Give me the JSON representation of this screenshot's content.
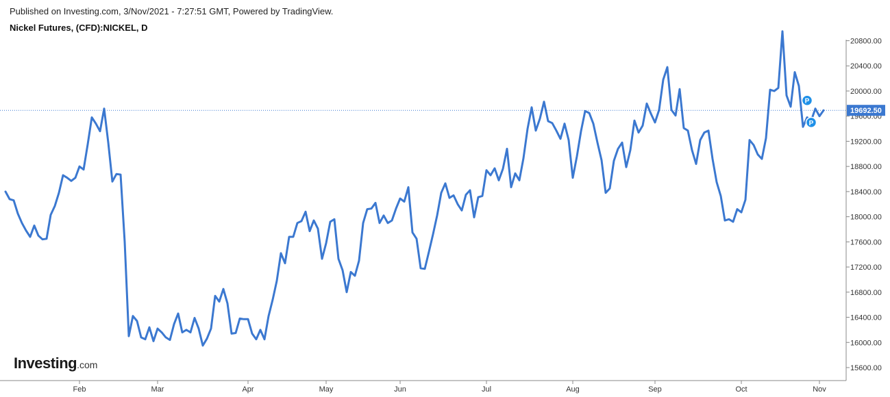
{
  "header": {
    "published": "Published on Investing.com, 3/Nov/2021 - 7:27:51 GMT, Powered by TradingView.",
    "title": "Nickel Futures, (CFD):NICKEL, D"
  },
  "logo": {
    "brand": "Investing",
    "tld": ".com"
  },
  "colors": {
    "line": "#3b78d0",
    "last_price_bg": "#3b78d0",
    "axis": "#777777",
    "marker": "#1e90e8"
  },
  "chart_data": {
    "type": "line",
    "title": "Nickel Futures, (CFD):NICKEL, D",
    "xlabel": "",
    "ylabel": "",
    "y_ticks": [
      "15600.00",
      "16000.00",
      "16400.00",
      "16800.00",
      "17200.00",
      "17600.00",
      "18000.00",
      "18400.00",
      "18800.00",
      "19200.00",
      "19600.00",
      "20000.00",
      "20400.00",
      "20800.00"
    ],
    "ylim": [
      15400,
      20990
    ],
    "x_ticks": [
      {
        "label": "Feb",
        "index": 18
      },
      {
        "label": "Mar",
        "index": 37
      },
      {
        "label": "Apr",
        "index": 59
      },
      {
        "label": "May",
        "index": 78
      },
      {
        "label": "Jun",
        "index": 96
      },
      {
        "label": "Jul",
        "index": 117
      },
      {
        "label": "Aug",
        "index": 138
      },
      {
        "label": "Sep",
        "index": 158
      },
      {
        "label": "Oct",
        "index": 179
      },
      {
        "label": "Nov",
        "index": 198
      }
    ],
    "last_price": "19692.50",
    "last_value": 19692.5,
    "markers": [
      {
        "label": "P",
        "index": 195,
        "value": 19850
      },
      {
        "label": "P",
        "index": 196,
        "value": 19500
      }
    ],
    "grid": false,
    "series": [
      {
        "values": [
          18400,
          18280,
          18260,
          18050,
          17900,
          17780,
          17680,
          17860,
          17700,
          17640,
          17650,
          18030,
          18170,
          18380,
          18660,
          18620,
          18570,
          18620,
          18800,
          18750,
          19150,
          19580,
          19480,
          19360,
          19720,
          19180,
          18560,
          18680,
          18670,
          17600,
          16100,
          16420,
          16340,
          16080,
          16050,
          16240,
          16020,
          16220,
          16160,
          16080,
          16040,
          16290,
          16460,
          16160,
          16200,
          16160,
          16390,
          16220,
          15950,
          16060,
          16220,
          16740,
          16650,
          16850,
          16620,
          16140,
          16150,
          16380,
          16370,
          16370,
          16140,
          16050,
          16200,
          16050,
          16420,
          16680,
          16980,
          17420,
          17260,
          17680,
          17680,
          17900,
          17930,
          18080,
          17770,
          17940,
          17810,
          17330,
          17580,
          17920,
          17960,
          17330,
          17150,
          16800,
          17120,
          17060,
          17300,
          17900,
          18120,
          18130,
          18220,
          17900,
          18020,
          17900,
          17940,
          18130,
          18290,
          18240,
          18470,
          17750,
          17650,
          17180,
          17170,
          17440,
          17720,
          18020,
          18380,
          18530,
          18300,
          18340,
          18200,
          18100,
          18350,
          18420,
          17990,
          18310,
          18330,
          18740,
          18660,
          18770,
          18580,
          18760,
          19080,
          18470,
          18690,
          18580,
          18930,
          19400,
          19740,
          19370,
          19560,
          19830,
          19520,
          19490,
          19370,
          19240,
          19480,
          19220,
          18620,
          18960,
          19360,
          19680,
          19650,
          19480,
          19180,
          18900,
          18380,
          18450,
          18890,
          19080,
          19180,
          18790,
          19060,
          19530,
          19340,
          19450,
          19800,
          19640,
          19500,
          19700,
          20180,
          20380,
          19700,
          19610,
          20030,
          19410,
          19370,
          19060,
          18840,
          19220,
          19340,
          19370,
          18920,
          18550,
          18330,
          17940,
          17960,
          17920,
          18120,
          18070,
          18270,
          19220,
          19140,
          18990,
          18920,
          19250,
          20020,
          20000,
          20050,
          20950,
          19930,
          19750,
          20300,
          20080,
          19430,
          19580,
          19530,
          19720,
          19600,
          19692.5
        ]
      }
    ]
  }
}
